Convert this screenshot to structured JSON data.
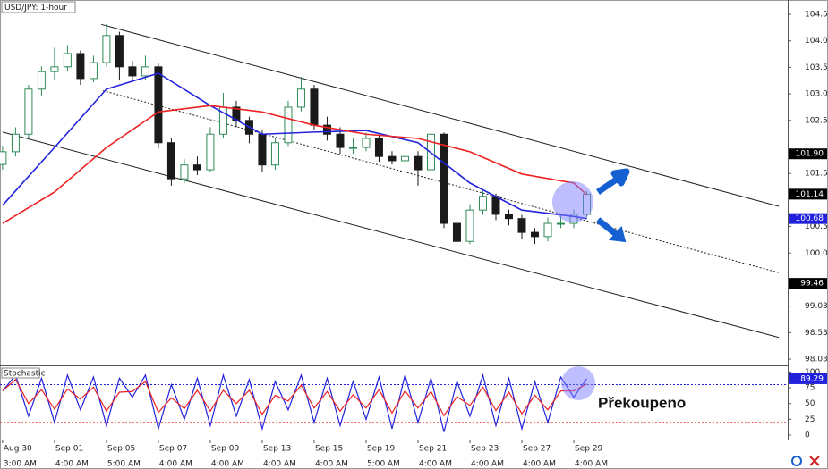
{
  "chart_data": [
    {
      "type": "candlestick",
      "title": "USD/JPY: 1-hour",
      "x": [
        0,
        0.25,
        0.5,
        0.75,
        1,
        1.25,
        1.5,
        1.75,
        2,
        2.25,
        2.5,
        2.75,
        3,
        3.25,
        3.5,
        3.75,
        4,
        4.25,
        4.5,
        4.75,
        5,
        5.25,
        5.5,
        5.75,
        6,
        6.25,
        6.5,
        6.75,
        7,
        7.25,
        7.5,
        7.75,
        8,
        8.25,
        8.5,
        8.75,
        9,
        9.25,
        9.5,
        9.75,
        10,
        10.25,
        10.5,
        10.75,
        11,
        11.25
      ],
      "opens": [
        101.7,
        101.94,
        102.27,
        103.12,
        103.45,
        103.54,
        103.79,
        103.32,
        103.62,
        104.13,
        103.54,
        103.37,
        103.54,
        102.11,
        101.43,
        101.69,
        101.6,
        102.27,
        102.78,
        102.53,
        102.27,
        101.69,
        102.11,
        102.78,
        103.12,
        102.44,
        102.27,
        102.02,
        102.02,
        102.19,
        101.85,
        101.77,
        101.85,
        101.6,
        102.27,
        100.59,
        100.25,
        100.84,
        101.1,
        100.76,
        100.68,
        100.42,
        100.34,
        100.59,
        100.59,
        100.76
      ],
      "highs": [
        102.05,
        102.4,
        103.2,
        103.55,
        103.9,
        103.95,
        103.85,
        103.75,
        104.35,
        104.2,
        103.65,
        103.75,
        103.6,
        102.2,
        101.8,
        101.85,
        102.4,
        103.05,
        102.9,
        102.6,
        102.35,
        102.2,
        102.9,
        103.35,
        103.2,
        102.6,
        102.4,
        102.2,
        102.3,
        102.25,
        101.95,
        102.0,
        101.95,
        102.75,
        102.3,
        100.7,
        100.95,
        101.2,
        101.15,
        100.85,
        100.75,
        100.5,
        100.7,
        100.75,
        100.85,
        101.2
      ],
      "lows": [
        101.6,
        101.85,
        102.2,
        103.0,
        103.3,
        103.45,
        103.2,
        103.25,
        103.55,
        103.3,
        103.25,
        103.3,
        102.0,
        101.3,
        101.35,
        101.5,
        101.55,
        102.2,
        102.4,
        102.1,
        101.55,
        101.6,
        102.05,
        102.7,
        102.35,
        102.15,
        101.9,
        101.9,
        101.95,
        101.75,
        101.7,
        101.65,
        101.3,
        101.5,
        100.5,
        100.15,
        100.2,
        100.75,
        100.65,
        100.55,
        100.3,
        100.2,
        100.25,
        100.5,
        100.5,
        100.7
      ],
      "closes": [
        101.94,
        102.27,
        103.12,
        103.45,
        103.54,
        103.79,
        103.32,
        103.62,
        104.13,
        103.54,
        103.37,
        103.54,
        102.11,
        101.43,
        101.69,
        101.6,
        102.27,
        102.78,
        102.53,
        102.27,
        101.69,
        102.11,
        102.78,
        103.12,
        102.44,
        102.27,
        102.02,
        102.02,
        102.19,
        101.85,
        101.77,
        101.85,
        101.6,
        102.27,
        100.59,
        100.25,
        100.84,
        101.1,
        100.76,
        100.68,
        100.42,
        100.34,
        100.59,
        100.59,
        100.76,
        101.14
      ],
      "up_color": "#2e8b57",
      "down_color": "#1a1a1a",
      "series": [
        {
          "color": "#2222dd",
          "x": [
            0,
            1,
            2,
            3,
            4,
            5,
            6,
            7,
            8,
            9,
            10,
            11,
            11.25
          ],
          "values": [
            100.93,
            102.02,
            103.12,
            103.42,
            102.81,
            102.27,
            102.31,
            102.34,
            102.11,
            101.35,
            100.84,
            100.72,
            100.68
          ]
        },
        {
          "color": "#ee2222",
          "x": [
            0,
            1,
            2,
            3,
            4,
            5,
            6,
            7,
            8,
            9,
            10,
            11,
            11.25
          ],
          "values": [
            100.59,
            101.18,
            102.02,
            102.69,
            102.81,
            102.69,
            102.44,
            102.27,
            102.19,
            101.94,
            101.52,
            101.35,
            101.13
          ]
        }
      ],
      "trendlines": [
        {
          "x": [
            1.9,
            14.95
          ],
          "y": [
            104.34,
            100.91
          ],
          "style": "solid"
        },
        {
          "x": [
            1.93,
            14.95
          ],
          "y": [
            103.09,
            99.66
          ],
          "style": "dotted"
        },
        {
          "x": [
            0,
            14.95
          ],
          "y": [
            102.31,
            98.44
          ],
          "style": "solid"
        }
      ],
      "xlim": [
        -0.05,
        15.12
      ],
      "ylim": [
        97.93,
        104.8
      ],
      "yticks": [
        104.53,
        104.03,
        103.53,
        103.03,
        102.53,
        101.53,
        100.53,
        100.03,
        99.03,
        98.53,
        98.03
      ],
      "price_markers": [
        {
          "value": 101.9,
          "label": "101.90",
          "color": "#000000"
        },
        {
          "value": 101.14,
          "label": "101.14",
          "color": "#000000"
        },
        {
          "value": 100.68,
          "label": "100.68",
          "color": "#2222dd"
        },
        {
          "value": 99.46,
          "label": "99.46",
          "color": "#000000"
        }
      ]
    },
    {
      "type": "line",
      "title": "Stochastic",
      "annotation": "Překoupeno",
      "x": [
        0,
        0.25,
        0.5,
        0.75,
        1,
        1.25,
        1.5,
        1.75,
        2,
        2.25,
        2.5,
        2.75,
        3,
        3.25,
        3.5,
        3.75,
        4,
        4.25,
        4.5,
        4.75,
        5,
        5.25,
        5.5,
        5.75,
        6,
        6.25,
        6.5,
        6.75,
        7,
        7.25,
        7.5,
        7.75,
        8,
        8.25,
        8.5,
        8.75,
        9,
        9.25,
        9.5,
        9.75,
        10,
        10.25,
        10.5,
        10.75,
        11,
        11.25
      ],
      "series": [
        {
          "color": "#2222dd",
          "values": [
            70,
            95,
            30,
            90,
            20,
            95,
            40,
            92,
            15,
            90,
            60,
            95,
            10,
            80,
            25,
            90,
            15,
            95,
            30,
            88,
            10,
            85,
            40,
            95,
            20,
            90,
            15,
            85,
            25,
            92,
            10,
            95,
            20,
            90,
            5,
            85,
            30,
            95,
            15,
            90,
            10,
            85,
            20,
            92,
            60,
            89.29
          ]
        },
        {
          "color": "#ee2222",
          "values": [
            70,
            88,
            50,
            72,
            41,
            73,
            57,
            76,
            38,
            68,
            69,
            85,
            36,
            59,
            42,
            71,
            38,
            71,
            50,
            71,
            33,
            63,
            54,
            79,
            43,
            69,
            38,
            64,
            43,
            72,
            35,
            70,
            43,
            69,
            31,
            61,
            47,
            76,
            39,
            68,
            34,
            63,
            40,
            70,
            70,
            81
          ]
        }
      ],
      "levels": [
        {
          "value": 80,
          "color": "#2222dd"
        },
        {
          "value": 20,
          "color": "#ee2222"
        }
      ],
      "xlim": [
        -0.05,
        15.12
      ],
      "ylim": [
        -7,
        109
      ],
      "yticks": [
        100,
        75,
        50,
        25,
        0
      ],
      "price_markers": [
        {
          "value": 89.29,
          "label": "89.29",
          "color": "#2222dd"
        }
      ],
      "xticks": [
        {
          "value": 0,
          "label": "Aug 30"
        },
        {
          "value": 1,
          "label": "Sep 01"
        },
        {
          "value": 2,
          "label": "Sep 05"
        },
        {
          "value": 3,
          "label": "Sep 07"
        },
        {
          "value": 4,
          "label": "Sep 09"
        },
        {
          "value": 5,
          "label": "Sep 13"
        },
        {
          "value": 6,
          "label": "Sep 15"
        },
        {
          "value": 7,
          "label": "Sep 19"
        },
        {
          "value": 8,
          "label": "Sep 21"
        },
        {
          "value": 9,
          "label": "Sep 23"
        },
        {
          "value": 10,
          "label": "Sep 27"
        },
        {
          "value": 11,
          "label": "Sep 29"
        }
      ],
      "xtick_times": [
        "3:00 AM",
        "4:00 AM",
        "5:00 AM",
        "4:00 AM",
        "4:00 AM",
        "4:00 AM",
        "4:00 AM",
        "5:00 AM",
        "4:00 AM",
        "4:00 AM",
        "4:00 AM",
        "4:00 AM"
      ]
    }
  ]
}
